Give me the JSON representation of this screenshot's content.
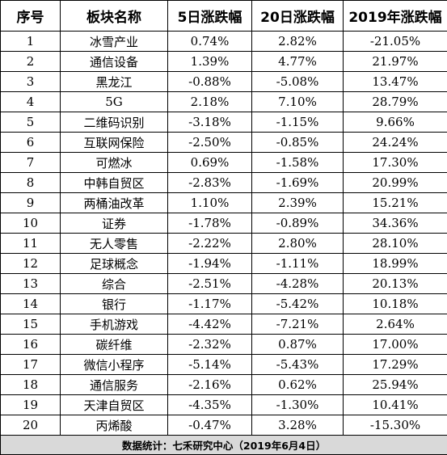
{
  "headers": [
    "序号",
    "板块名称",
    "5日涨跌幅",
    "20日涨跌幅",
    "2019年涨跌幅"
  ],
  "rows": [
    [
      "1",
      "冰雪产业",
      "0.74%",
      "2.82%",
      "-21.05%"
    ],
    [
      "2",
      "通信设备",
      "1.39%",
      "4.77%",
      "21.97%"
    ],
    [
      "3",
      "黑龙江",
      "-0.88%",
      "-5.08%",
      "13.47%"
    ],
    [
      "4",
      "5G",
      "2.18%",
      "7.10%",
      "28.79%"
    ],
    [
      "5",
      "二维码识别",
      "-3.18%",
      "-1.15%",
      "9.66%"
    ],
    [
      "6",
      "互联网保险",
      "-2.50%",
      "-0.85%",
      "24.24%"
    ],
    [
      "7",
      "可燃冰",
      "0.69%",
      "-1.58%",
      "17.30%"
    ],
    [
      "8",
      "中韩自贸区",
      "-2.83%",
      "-1.69%",
      "20.99%"
    ],
    [
      "9",
      "两桶油改革",
      "1.10%",
      "2.39%",
      "15.21%"
    ],
    [
      "10",
      "证券",
      "-1.78%",
      "-0.89%",
      "34.36%"
    ],
    [
      "11",
      "无人零售",
      "-2.22%",
      "2.80%",
      "28.10%"
    ],
    [
      "12",
      "足球概念",
      "-1.94%",
      "-1.11%",
      "18.99%"
    ],
    [
      "13",
      "综合",
      "-2.51%",
      "-4.28%",
      "20.13%"
    ],
    [
      "14",
      "银行",
      "-1.17%",
      "-5.42%",
      "10.18%"
    ],
    [
      "15",
      "手机游戏",
      "-4.42%",
      "-7.21%",
      "2.64%"
    ],
    [
      "16",
      "碳纤维",
      "-2.32%",
      "0.87%",
      "17.00%"
    ],
    [
      "17",
      "微信小程序",
      "-5.14%",
      "-5.43%",
      "17.29%"
    ],
    [
      "18",
      "通信服务",
      "-2.16%",
      "0.62%",
      "25.94%"
    ],
    [
      "19",
      "天津自贸区",
      "-4.35%",
      "-1.30%",
      "10.41%"
    ],
    [
      "20",
      "丙烯酸",
      "-0.47%",
      "3.28%",
      "-15.30%"
    ]
  ],
  "footer": "数据统计：七禾研究中心（2019年6月4日）"
}
